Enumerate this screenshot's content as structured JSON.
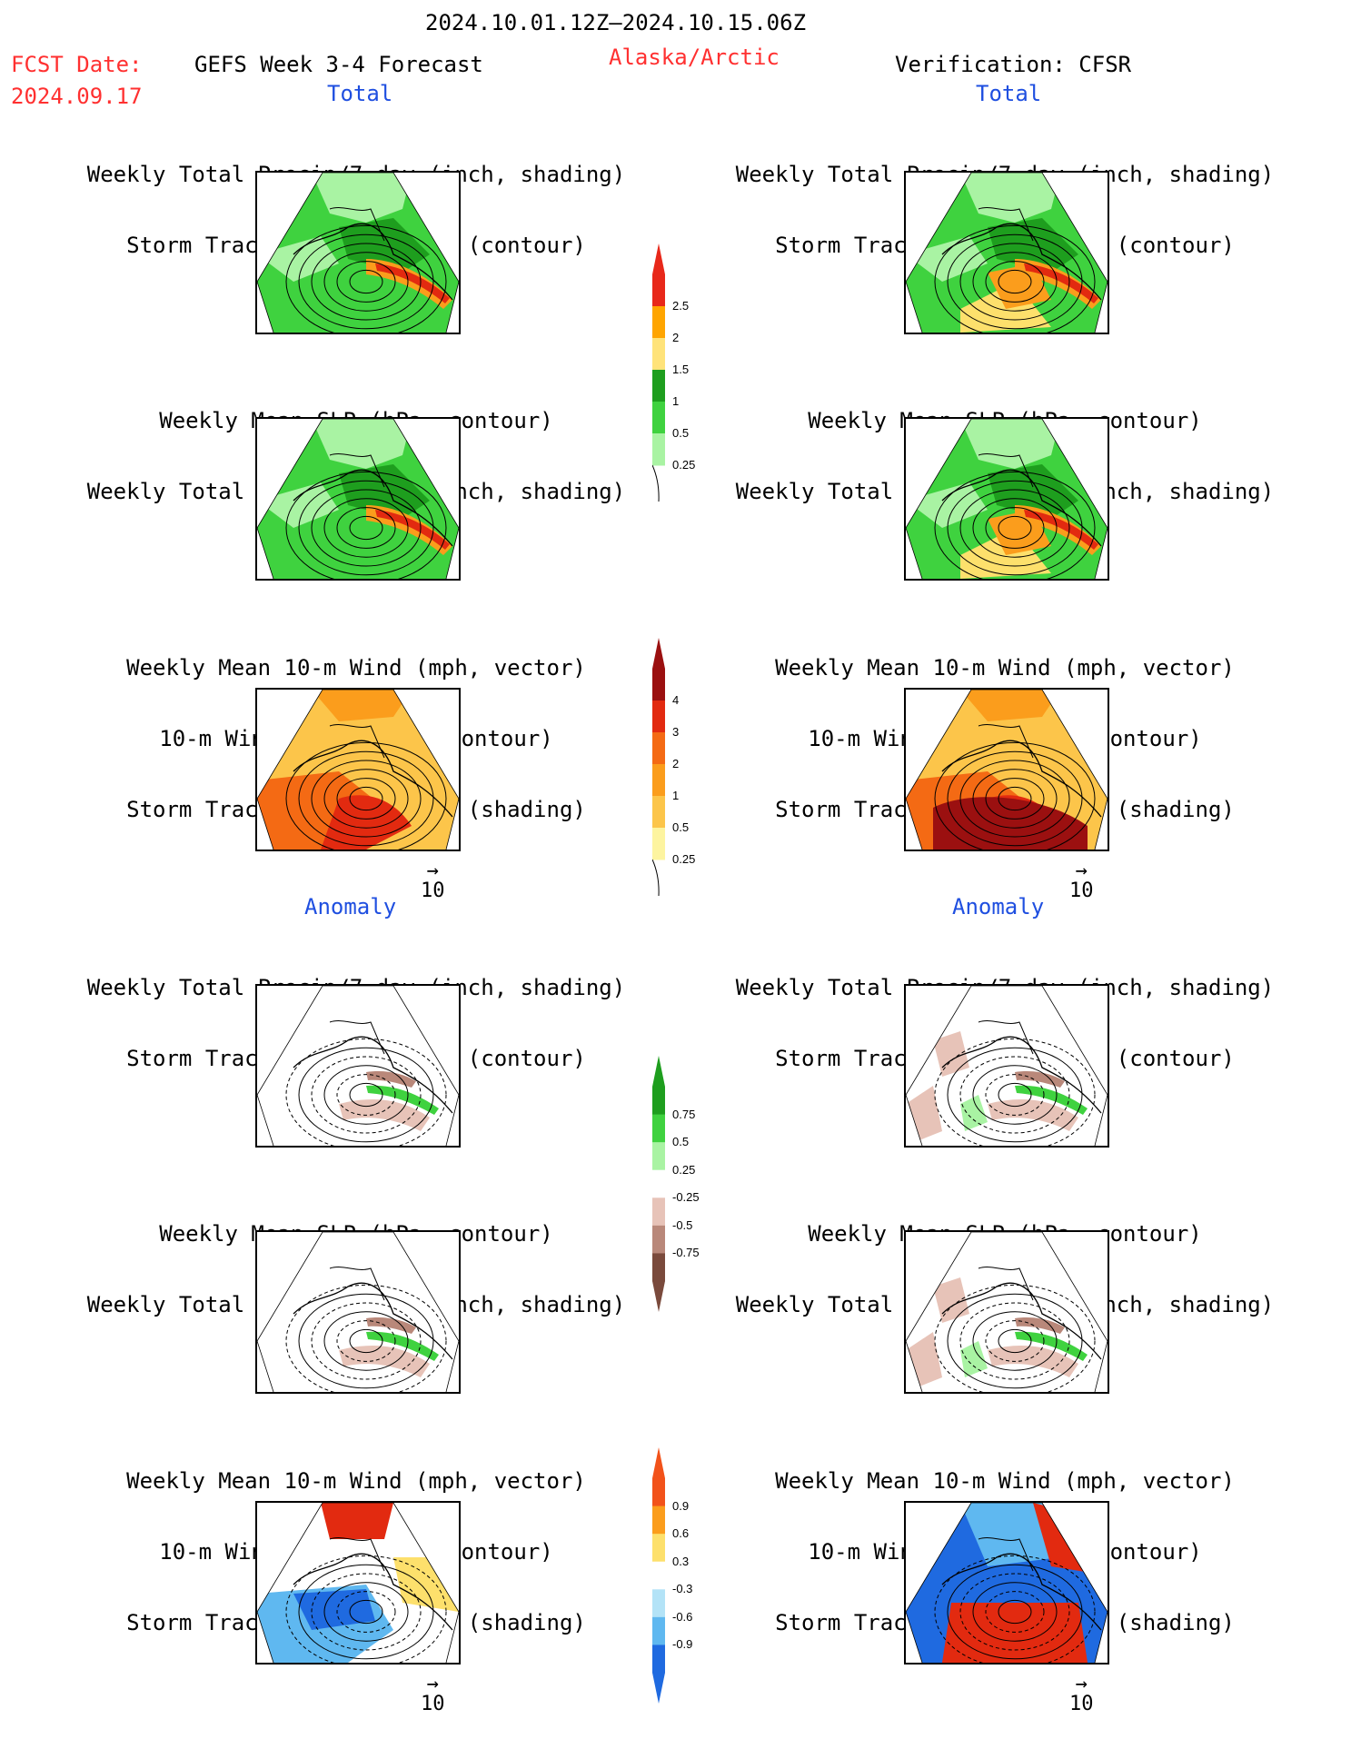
{
  "header": {
    "date_range": "2024.10.01.12Z–2024.10.15.06Z",
    "fcst_label": "FCST Date:",
    "fcst_date": "2024.09.17",
    "product": "GEFS Week 3-4 Forecast",
    "region": "Alaska/Arctic",
    "verification": "Verification: CFSR"
  },
  "sections": {
    "total_left": "Total",
    "total_right": "Total",
    "anomaly_left": "Anomaly",
    "anomaly_right": "Anomaly"
  },
  "panel_titles": {
    "precip_storm": [
      "Weekly Total Precip/7-day (inch, shading)",
      "Storm Track Density/7-day (contour)"
    ],
    "slp_precip": [
      "Weekly Mean SLP (hPa, contour)",
      "Weekly Total Precip/7-day (inch, shading)"
    ],
    "wind": [
      "Weekly Mean 10-m Wind (mph, vector)",
      "10-m Wind Speed (mph, contour)",
      "Storm Track Density/7-day (shading)"
    ]
  },
  "vector_ref": "10",
  "colorbars": {
    "precip_total": {
      "labels": [
        "2.5",
        "2",
        "1.5",
        "1",
        "0.5",
        "0.25"
      ],
      "colors": [
        "#e8281a",
        "#ffa500",
        "#ffe37a",
        "#1e9e1e",
        "#3fd23f",
        "#a9f3a3"
      ]
    },
    "storm_total": {
      "labels": [
        "4",
        "3",
        "2",
        "1",
        "0.5",
        "0.25"
      ],
      "colors": [
        "#9b1010",
        "#e22a10",
        "#f46a14",
        "#fb9d1c",
        "#fcc54a",
        "#fdf4a0"
      ]
    },
    "precip_anom": {
      "labels": [
        "0.75",
        "0.5",
        "0.25",
        "-0.25",
        "-0.5",
        "-0.75"
      ],
      "colors": [
        "#1e9e1e",
        "#3fd23f",
        "#a9f3a3",
        "#ffffff",
        "#e7c3b8",
        "#b9887a",
        "#7a4a3c"
      ]
    },
    "wind_anom": {
      "labels": [
        "0.9",
        "0.6",
        "0.3",
        "-0.3",
        "-0.6",
        "-0.9"
      ],
      "colors": [
        "#f2521a",
        "#fb9d1c",
        "#fde06c",
        "#ffffff",
        "#b3e3f7",
        "#5fb8f0",
        "#1f6ae0"
      ]
    }
  },
  "maps": {
    "fill_palette": {
      "green_dark": "#1e9e1e",
      "green": "#3fd23f",
      "green_light": "#a9f3a3",
      "brown": "#b9887a",
      "brown_light": "#e7c3b8",
      "orange": "#fb9d1c",
      "red": "#e22a10",
      "blue": "#1f6ae0",
      "blue_light": "#5fb8f0",
      "yellow": "#fde06c"
    }
  }
}
